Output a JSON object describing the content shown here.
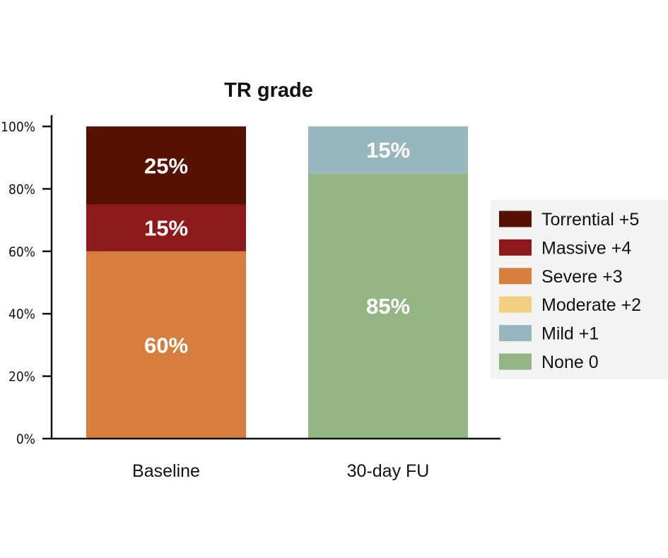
{
  "chart_data": {
    "type": "bar",
    "stacked": true,
    "title": "TR grade",
    "xlabel": "",
    "ylabel": "",
    "ylim": [
      0,
      100
    ],
    "yticks": [
      "0%",
      "20%",
      "40%",
      "60%",
      "80%",
      "100%"
    ],
    "categories": [
      "Baseline",
      "30-day FU"
    ],
    "series": [
      {
        "name": "None 0",
        "color": "#93b684",
        "values": [
          0,
          85
        ],
        "labels": [
          "",
          "85%"
        ]
      },
      {
        "name": "Mild +1",
        "color": "#98b6bd",
        "values": [
          0,
          15
        ],
        "labels": [
          "",
          "15%"
        ]
      },
      {
        "name": "Moderate +2",
        "color": "#f2cf7f",
        "values": [
          0,
          0
        ],
        "labels": [
          "",
          ""
        ]
      },
      {
        "name": "Severe +3",
        "color": "#d67f3c",
        "values": [
          60,
          0
        ],
        "labels": [
          "60%",
          ""
        ]
      },
      {
        "name": "Massive +4",
        "color": "#8e1a1b",
        "values": [
          15,
          0
        ],
        "labels": [
          "15%",
          ""
        ]
      },
      {
        "name": "Torrential +5",
        "color": "#561100",
        "values": [
          25,
          0
        ],
        "labels": [
          "25%",
          ""
        ]
      }
    ],
    "legend": {
      "placement": "right",
      "order": [
        "Torrential +5",
        "Massive +4",
        "Severe +3",
        "Moderate +2",
        "Mild +1",
        "None 0"
      ],
      "background": "#f3f3f3"
    }
  }
}
